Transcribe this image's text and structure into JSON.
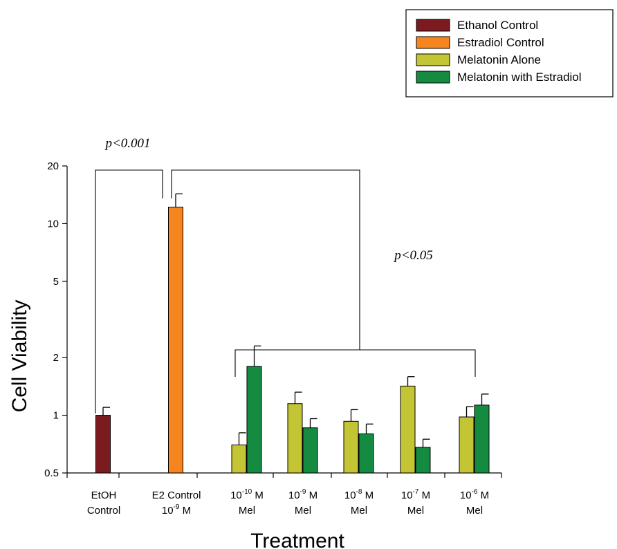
{
  "chart_data": {
    "type": "bar",
    "xlabel": "Treatment",
    "ylabel": "Cell Viability",
    "yscale": "log",
    "ylim": [
      0.5,
      20
    ],
    "yticks": [
      0.5,
      1,
      2,
      5,
      10,
      20
    ],
    "ytick_labels": [
      "0.5",
      "1",
      "2",
      "5",
      "10",
      "20"
    ],
    "legend_position": "top-right",
    "legend": [
      {
        "name": "Ethanol Control",
        "color": "#7b1a1f"
      },
      {
        "name": "Estradiol Control",
        "color": "#f7851f"
      },
      {
        "name": "Melatonin Alone",
        "color": "#c3c534"
      },
      {
        "name": "Melatonin with Estradiol",
        "color": "#148b40"
      }
    ],
    "categories": [
      {
        "line1_base": "EtOH",
        "line1_exp": "",
        "line1_unit": "",
        "line2": "Control"
      },
      {
        "line1_base": "E2 Control",
        "line1_exp": "",
        "line1_unit": "",
        "line2_base": "10",
        "line2_exp": "-9",
        "line2_unit": " M"
      },
      {
        "line1_base": "10",
        "line1_exp": "-10",
        "line1_unit": " M",
        "line2": "Mel"
      },
      {
        "line1_base": "10",
        "line1_exp": "-9",
        "line1_unit": " M",
        "line2": "Mel"
      },
      {
        "line1_base": "10",
        "line1_exp": "-8",
        "line1_unit": " M",
        "line2": "Mel"
      },
      {
        "line1_base": "10",
        "line1_exp": "-7",
        "line1_unit": " M",
        "line2": "Mel"
      },
      {
        "line1_base": "10",
        "line1_exp": "-6",
        "line1_unit": " M",
        "line2": "Mel"
      }
    ],
    "bars": [
      {
        "category": 0,
        "series": "Ethanol Control",
        "value": 1.0,
        "error": 0.1
      },
      {
        "category": 1,
        "series": "Estradiol Control",
        "value": 12.2,
        "error": 2.1
      },
      {
        "category": 2,
        "series": "Melatonin Alone",
        "value": 0.7,
        "error": 0.11
      },
      {
        "category": 2,
        "series": "Melatonin with Estradiol",
        "value": 1.8,
        "error": 0.5
      },
      {
        "category": 3,
        "series": "Melatonin Alone",
        "value": 1.15,
        "error": 0.17
      },
      {
        "category": 3,
        "series": "Melatonin with Estradiol",
        "value": 0.86,
        "error": 0.1
      },
      {
        "category": 4,
        "series": "Melatonin Alone",
        "value": 0.93,
        "error": 0.14
      },
      {
        "category": 4,
        "series": "Melatonin with Estradiol",
        "value": 0.8,
        "error": 0.1
      },
      {
        "category": 5,
        "series": "Melatonin Alone",
        "value": 1.42,
        "error": 0.17
      },
      {
        "category": 5,
        "series": "Melatonin with Estradiol",
        "value": 0.68,
        "error": 0.07
      },
      {
        "category": 6,
        "series": "Melatonin Alone",
        "value": 0.98,
        "error": 0.13
      },
      {
        "category": 6,
        "series": "Melatonin with Estradiol",
        "value": 1.13,
        "error": 0.16
      }
    ],
    "annotations": [
      {
        "text": "p<0.001",
        "compares": [
          "EtOH Control",
          "E2 Control"
        ]
      },
      {
        "text": "p<0.05",
        "compares": [
          "E2 Control",
          "Melatonin with Estradiol groups"
        ]
      }
    ]
  }
}
